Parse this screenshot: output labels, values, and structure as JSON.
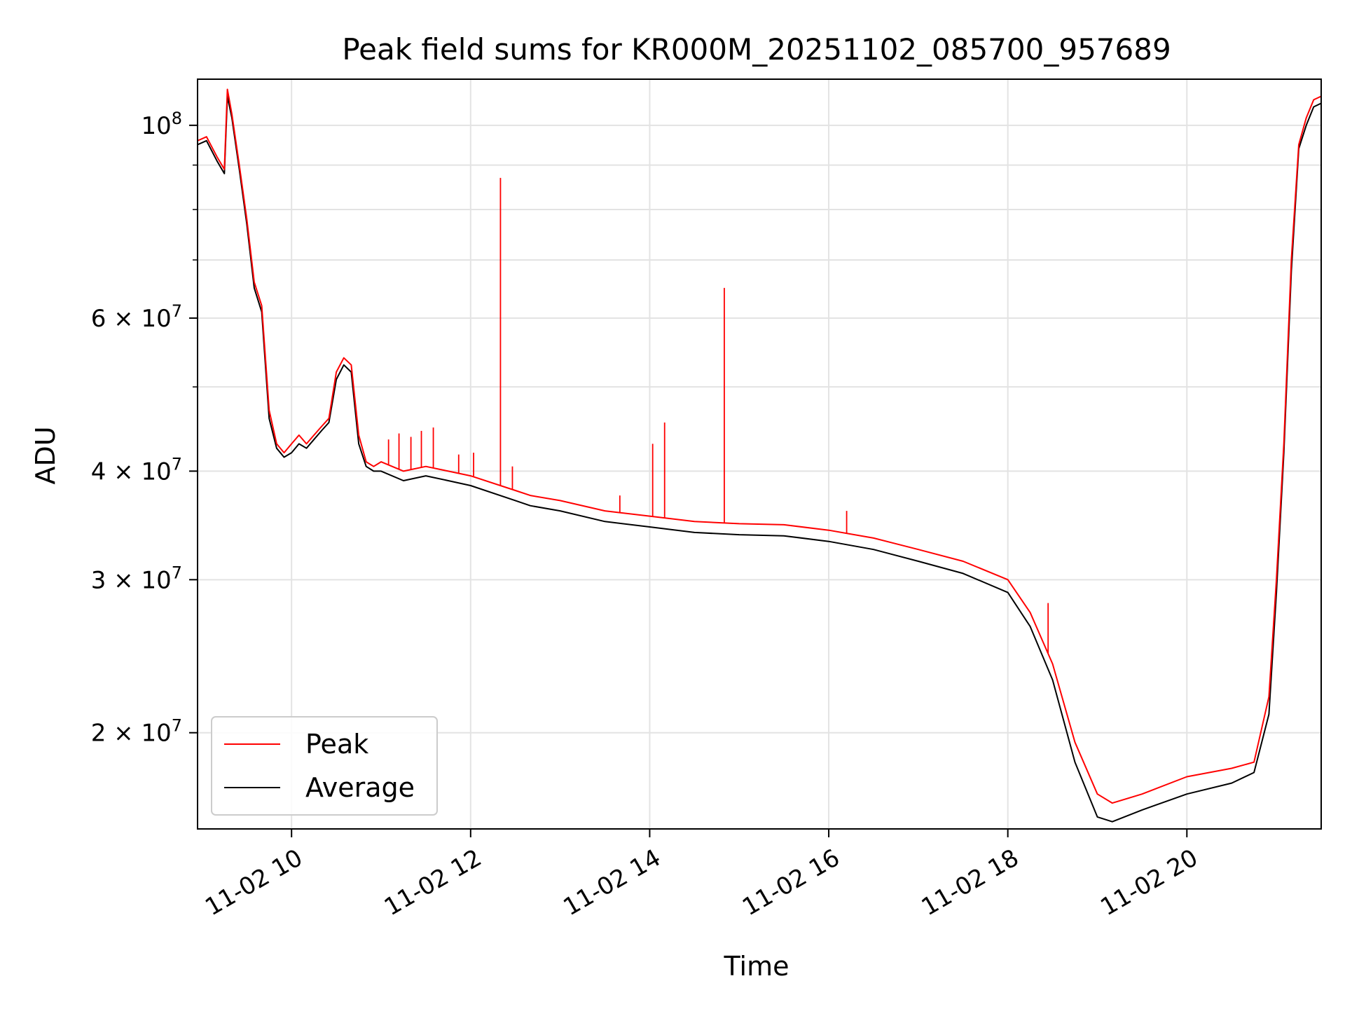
{
  "chart_data": {
    "type": "line",
    "title": "Peak field sums for KR000M_20251102_085700_957689",
    "xlabel": "Time",
    "ylabel": "ADU",
    "yscale": "log",
    "xlim": [
      "2025-11-02T08:57",
      "2025-11-02T21:30"
    ],
    "ylim": [
      15500000,
      113000000
    ],
    "grid": true,
    "legend": "lower-left",
    "x_ticks": [
      {
        "t": "2025-11-02T10:00",
        "label": "11-02 10"
      },
      {
        "t": "2025-11-02T12:00",
        "label": "11-02 12"
      },
      {
        "t": "2025-11-02T14:00",
        "label": "11-02 14"
      },
      {
        "t": "2025-11-02T16:00",
        "label": "11-02 16"
      },
      {
        "t": "2025-11-02T18:00",
        "label": "11-02 18"
      },
      {
        "t": "2025-11-02T20:00",
        "label": "11-02 20"
      }
    ],
    "y_ticks": [
      {
        "value": 100000000,
        "base": "10",
        "exp": "8"
      },
      {
        "value": 60000000,
        "base": "6 × 10",
        "exp": "7"
      },
      {
        "value": 40000000,
        "base": "4 × 10",
        "exp": "7"
      },
      {
        "value": 30000000,
        "base": "3 × 10",
        "exp": "7"
      },
      {
        "value": 20000000,
        "base": "2 × 10",
        "exp": "7"
      }
    ],
    "y_minor_ticks": [
      50000000,
      70000000,
      80000000,
      90000000
    ],
    "series": [
      {
        "name": "Peak",
        "color": "#ff0000",
        "x": [
          "2025-11-02T08:57",
          "2025-11-02T09:03",
          "2025-11-02T09:10",
          "2025-11-02T09:15",
          "2025-11-02T09:17",
          "2025-11-02T09:20",
          "2025-11-02T09:25",
          "2025-11-02T09:30",
          "2025-11-02T09:35",
          "2025-11-02T09:40",
          "2025-11-02T09:45",
          "2025-11-02T09:50",
          "2025-11-02T09:55",
          "2025-11-02T10:00",
          "2025-11-02T10:05",
          "2025-11-02T10:10",
          "2025-11-02T10:15",
          "2025-11-02T10:20",
          "2025-11-02T10:25",
          "2025-11-02T10:30",
          "2025-11-02T10:35",
          "2025-11-02T10:40",
          "2025-11-02T10:45",
          "2025-11-02T10:50",
          "2025-11-02T10:55",
          "2025-11-02T11:00",
          "2025-11-02T11:15",
          "2025-11-02T11:30",
          "2025-11-02T11:45",
          "2025-11-02T12:00",
          "2025-11-02T12:30",
          "2025-11-02T12:40",
          "2025-11-02T13:00",
          "2025-11-02T13:30",
          "2025-11-02T14:00",
          "2025-11-02T14:30",
          "2025-11-02T15:00",
          "2025-11-02T15:30",
          "2025-11-02T16:00",
          "2025-11-02T16:30",
          "2025-11-02T17:00",
          "2025-11-02T17:30",
          "2025-11-02T18:00",
          "2025-11-02T18:15",
          "2025-11-02T18:30",
          "2025-11-02T18:45",
          "2025-11-02T19:00",
          "2025-11-02T19:10",
          "2025-11-02T19:30",
          "2025-11-02T20:00",
          "2025-11-02T20:30",
          "2025-11-02T20:45",
          "2025-11-02T20:55",
          "2025-11-02T21:00",
          "2025-11-02T21:05",
          "2025-11-02T21:10",
          "2025-11-02T21:15",
          "2025-11-02T21:20",
          "2025-11-02T21:25",
          "2025-11-02T21:30"
        ],
        "y": [
          96000000,
          97000000,
          92000000,
          89000000,
          110000000,
          103000000,
          90000000,
          78000000,
          66000000,
          62000000,
          47000000,
          43000000,
          42000000,
          43000000,
          44000000,
          43000000,
          44000000,
          45000000,
          46000000,
          52000000,
          54000000,
          53000000,
          44000000,
          41000000,
          40500000,
          41000000,
          40000000,
          40500000,
          40000000,
          39500000,
          38000000,
          37500000,
          37000000,
          36000000,
          35500000,
          35000000,
          34800000,
          34700000,
          34200000,
          33500000,
          32500000,
          31500000,
          30000000,
          27500000,
          24000000,
          19500000,
          17000000,
          16600000,
          17000000,
          17800000,
          18200000,
          18500000,
          22000000,
          30000000,
          43000000,
          70000000,
          95000000,
          102000000,
          107000000,
          108000000
        ]
      },
      {
        "name": "Average",
        "color": "#000000",
        "x": [
          "2025-11-02T08:57",
          "2025-11-02T09:03",
          "2025-11-02T09:10",
          "2025-11-02T09:15",
          "2025-11-02T09:17",
          "2025-11-02T09:20",
          "2025-11-02T09:25",
          "2025-11-02T09:30",
          "2025-11-02T09:35",
          "2025-11-02T09:40",
          "2025-11-02T09:45",
          "2025-11-02T09:50",
          "2025-11-02T09:55",
          "2025-11-02T10:00",
          "2025-11-02T10:05",
          "2025-11-02T10:10",
          "2025-11-02T10:15",
          "2025-11-02T10:20",
          "2025-11-02T10:25",
          "2025-11-02T10:30",
          "2025-11-02T10:35",
          "2025-11-02T10:40",
          "2025-11-02T10:45",
          "2025-11-02T10:50",
          "2025-11-02T10:55",
          "2025-11-02T11:00",
          "2025-11-02T11:15",
          "2025-11-02T11:30",
          "2025-11-02T11:45",
          "2025-11-02T12:00",
          "2025-11-02T12:30",
          "2025-11-02T12:40",
          "2025-11-02T13:00",
          "2025-11-02T13:30",
          "2025-11-02T14:00",
          "2025-11-02T14:30",
          "2025-11-02T15:00",
          "2025-11-02T15:30",
          "2025-11-02T16:00",
          "2025-11-02T16:30",
          "2025-11-02T17:00",
          "2025-11-02T17:30",
          "2025-11-02T18:00",
          "2025-11-02T18:15",
          "2025-11-02T18:30",
          "2025-11-02T18:45",
          "2025-11-02T19:00",
          "2025-11-02T19:10",
          "2025-11-02T19:30",
          "2025-11-02T20:00",
          "2025-11-02T20:30",
          "2025-11-02T20:45",
          "2025-11-02T20:55",
          "2025-11-02T21:00",
          "2025-11-02T21:05",
          "2025-11-02T21:10",
          "2025-11-02T21:15",
          "2025-11-02T21:20",
          "2025-11-02T21:25",
          "2025-11-02T21:30"
        ],
        "y": [
          95000000,
          96000000,
          91000000,
          88000000,
          108000000,
          102000000,
          89000000,
          77000000,
          65000000,
          61000000,
          46000000,
          42500000,
          41500000,
          42000000,
          43000000,
          42500000,
          43500000,
          44500000,
          45500000,
          51000000,
          53000000,
          52000000,
          43000000,
          40500000,
          40000000,
          40000000,
          39000000,
          39500000,
          39000000,
          38500000,
          37000000,
          36500000,
          36000000,
          35000000,
          34500000,
          34000000,
          33800000,
          33700000,
          33200000,
          32500000,
          31500000,
          30500000,
          29000000,
          26500000,
          23000000,
          18500000,
          16000000,
          15800000,
          16300000,
          17000000,
          17500000,
          18000000,
          21000000,
          29000000,
          42000000,
          68000000,
          94000000,
          100000000,
          105000000,
          106000000
        ]
      }
    ],
    "spikes": [
      {
        "t": "2025-11-02T11:05",
        "y": 43500000
      },
      {
        "t": "2025-11-02T11:12",
        "y": 44200000
      },
      {
        "t": "2025-11-02T11:20",
        "y": 43800000
      },
      {
        "t": "2025-11-02T11:27",
        "y": 44500000
      },
      {
        "t": "2025-11-02T11:35",
        "y": 44900000
      },
      {
        "t": "2025-11-02T11:52",
        "y": 41800000
      },
      {
        "t": "2025-11-02T12:02",
        "y": 42000000
      },
      {
        "t": "2025-11-02T12:20",
        "y": 87000000
      },
      {
        "t": "2025-11-02T12:28",
        "y": 40500000
      },
      {
        "t": "2025-11-02T13:40",
        "y": 37500000
      },
      {
        "t": "2025-11-02T14:02",
        "y": 43000000
      },
      {
        "t": "2025-11-02T14:10",
        "y": 45500000
      },
      {
        "t": "2025-11-02T14:50",
        "y": 65000000
      },
      {
        "t": "2025-11-02T16:12",
        "y": 36000000
      },
      {
        "t": "2025-11-02T18:27",
        "y": 28200000
      }
    ]
  }
}
